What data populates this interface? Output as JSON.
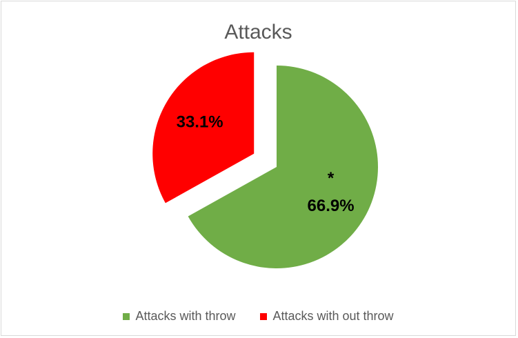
{
  "chart_data": {
    "type": "pie",
    "title": "Attacks",
    "slices": [
      {
        "name": "Attacks with throw",
        "value": 66.9,
        "label": "66.9%",
        "annotation": "*",
        "color": "#70ad47",
        "exploded": false
      },
      {
        "name": "Attacks with out throw",
        "value": 33.1,
        "label": "33.1%",
        "color": "#ff0000",
        "exploded": true
      }
    ],
    "legend_position": "bottom"
  }
}
